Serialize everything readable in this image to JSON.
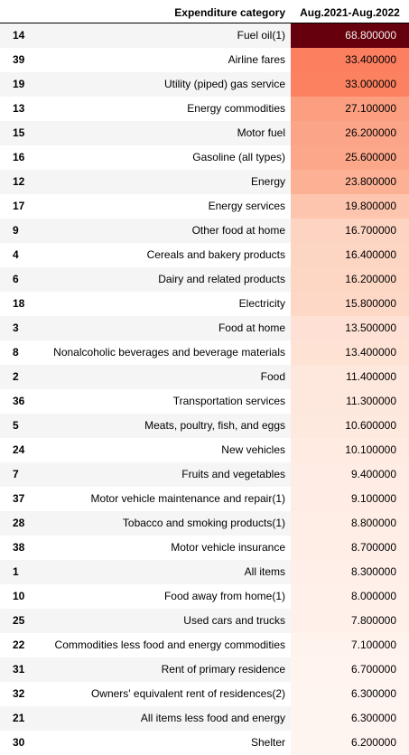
{
  "chart_data": {
    "type": "table",
    "columns": [
      "",
      "Expenditure category",
      "Aug.2021-Aug.2022"
    ],
    "rows": [
      {
        "index": "14",
        "category": "Fuel oil(1)",
        "value": "68.800000"
      },
      {
        "index": "39",
        "category": "Airline fares",
        "value": "33.400000"
      },
      {
        "index": "19",
        "category": "Utility (piped) gas service",
        "value": "33.000000"
      },
      {
        "index": "13",
        "category": "Energy commodities",
        "value": "27.100000"
      },
      {
        "index": "15",
        "category": "Motor fuel",
        "value": "26.200000"
      },
      {
        "index": "16",
        "category": "Gasoline (all types)",
        "value": "25.600000"
      },
      {
        "index": "12",
        "category": "Energy",
        "value": "23.800000"
      },
      {
        "index": "17",
        "category": "Energy services",
        "value": "19.800000"
      },
      {
        "index": "9",
        "category": "Other food at home",
        "value": "16.700000"
      },
      {
        "index": "4",
        "category": "Cereals and bakery products",
        "value": "16.400000"
      },
      {
        "index": "6",
        "category": "Dairy and related products",
        "value": "16.200000"
      },
      {
        "index": "18",
        "category": "Electricity",
        "value": "15.800000"
      },
      {
        "index": "3",
        "category": "Food at home",
        "value": "13.500000"
      },
      {
        "index": "8",
        "category": "Nonalcoholic beverages and beverage materials",
        "value": "13.400000"
      },
      {
        "index": "2",
        "category": "Food",
        "value": "11.400000"
      },
      {
        "index": "36",
        "category": "Transportation services",
        "value": "11.300000"
      },
      {
        "index": "5",
        "category": "Meats, poultry, fish, and eggs",
        "value": "10.600000"
      },
      {
        "index": "24",
        "category": "New vehicles",
        "value": "10.100000"
      },
      {
        "index": "7",
        "category": "Fruits and vegetables",
        "value": "9.400000"
      },
      {
        "index": "37",
        "category": "Motor vehicle maintenance and repair(1)",
        "value": "9.100000"
      },
      {
        "index": "28",
        "category": "Tobacco and smoking products(1)",
        "value": "8.800000"
      },
      {
        "index": "38",
        "category": "Motor vehicle insurance",
        "value": "8.700000"
      },
      {
        "index": "1",
        "category": "All items",
        "value": "8.300000"
      },
      {
        "index": "10",
        "category": "Food away from home(1)",
        "value": "8.000000"
      },
      {
        "index": "25",
        "category": "Used cars and trucks",
        "value": "7.800000"
      },
      {
        "index": "22",
        "category": "Commodities less food and energy commodities",
        "value": "7.100000"
      },
      {
        "index": "31",
        "category": "Rent of primary residence",
        "value": "6.700000"
      },
      {
        "index": "32",
        "category": "Owners' equivalent rent of residences(2)",
        "value": "6.300000"
      },
      {
        "index": "21",
        "category": "All items less food and energy",
        "value": "6.300000"
      },
      {
        "index": "30",
        "category": "Shelter",
        "value": "6.200000"
      }
    ],
    "color_scale": {
      "name": "Reds",
      "low": "#fff5f0",
      "high": "#67000d"
    }
  }
}
